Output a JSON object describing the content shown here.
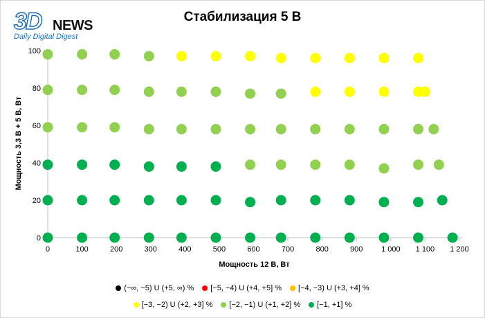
{
  "logo": {
    "mark": "3D",
    "word": "NEWS",
    "tagline": "Daily Digital Digest"
  },
  "chart_data": {
    "type": "scatter",
    "title": "Стабилизация 5 В",
    "xlabel": "Мощность  12 В, Вт",
    "ylabel": "Мощность  3,3 В + 5 В, Вт",
    "xlim": [
      0,
      1200
    ],
    "ylim": [
      0,
      100
    ],
    "x_ticks": [
      "0",
      "100",
      "200",
      "300",
      "400",
      "500",
      "600",
      "700",
      "800",
      "900",
      "1 000",
      "1 100",
      "1 200"
    ],
    "y_ticks": [
      "0",
      "20",
      "40",
      "60",
      "80",
      "100"
    ],
    "grid": false,
    "legend_position": "bottom",
    "series": [
      {
        "name": "(−∞, −5) U (+5, ∞) %",
        "color": "#000000",
        "points": []
      },
      {
        "name": "[−5, −4) U (+4, +5] %",
        "color": "#ff0000",
        "points": []
      },
      {
        "name": "[−4, −3) U (+3, +4] %",
        "color": "#ffc000",
        "points": []
      },
      {
        "name": "[−3, −2) U (+2, +3] %",
        "color": "#ffff00",
        "points": [
          [
            390,
            97
          ],
          [
            490,
            97
          ],
          [
            590,
            97
          ],
          [
            680,
            96
          ],
          [
            780,
            96
          ],
          [
            880,
            96
          ],
          [
            980,
            96
          ],
          [
            1080,
            96
          ],
          [
            780,
            78
          ],
          [
            880,
            78
          ],
          [
            980,
            78
          ],
          [
            1080,
            78
          ],
          [
            1100,
            78
          ]
        ]
      },
      {
        "name": "[−2, −1) U (+1, +2] %",
        "color": "#92d050",
        "points": [
          [
            0,
            98
          ],
          [
            100,
            98
          ],
          [
            195,
            98
          ],
          [
            295,
            97
          ],
          [
            0,
            79
          ],
          [
            100,
            79
          ],
          [
            195,
            79
          ],
          [
            295,
            78
          ],
          [
            390,
            78
          ],
          [
            490,
            78
          ],
          [
            590,
            77
          ],
          [
            680,
            77
          ],
          [
            0,
            59
          ],
          [
            100,
            59
          ],
          [
            195,
            59
          ],
          [
            295,
            58
          ],
          [
            390,
            58
          ],
          [
            490,
            58
          ],
          [
            590,
            58
          ],
          [
            680,
            58
          ],
          [
            780,
            58
          ],
          [
            880,
            58
          ],
          [
            980,
            58
          ],
          [
            1080,
            58
          ],
          [
            1125,
            58
          ],
          [
            590,
            39
          ],
          [
            680,
            39
          ],
          [
            780,
            39
          ],
          [
            880,
            39
          ],
          [
            980,
            37
          ],
          [
            1080,
            39
          ],
          [
            1140,
            39
          ]
        ]
      },
      {
        "name": "[−1, +1] %",
        "color": "#00b050",
        "points": [
          [
            0,
            39
          ],
          [
            100,
            39
          ],
          [
            195,
            39
          ],
          [
            295,
            38
          ],
          [
            390,
            38
          ],
          [
            490,
            38
          ],
          [
            0,
            20
          ],
          [
            100,
            20
          ],
          [
            195,
            20
          ],
          [
            295,
            20
          ],
          [
            390,
            20
          ],
          [
            490,
            20
          ],
          [
            590,
            19
          ],
          [
            680,
            20
          ],
          [
            780,
            20
          ],
          [
            880,
            20
          ],
          [
            980,
            19
          ],
          [
            1080,
            19
          ],
          [
            1150,
            20
          ],
          [
            0,
            0
          ],
          [
            100,
            0
          ],
          [
            195,
            0
          ],
          [
            295,
            0
          ],
          [
            390,
            0
          ],
          [
            490,
            0
          ],
          [
            590,
            0
          ],
          [
            680,
            0
          ],
          [
            780,
            0
          ],
          [
            880,
            0
          ],
          [
            980,
            0
          ],
          [
            1080,
            0
          ],
          [
            1180,
            0
          ]
        ]
      }
    ]
  }
}
